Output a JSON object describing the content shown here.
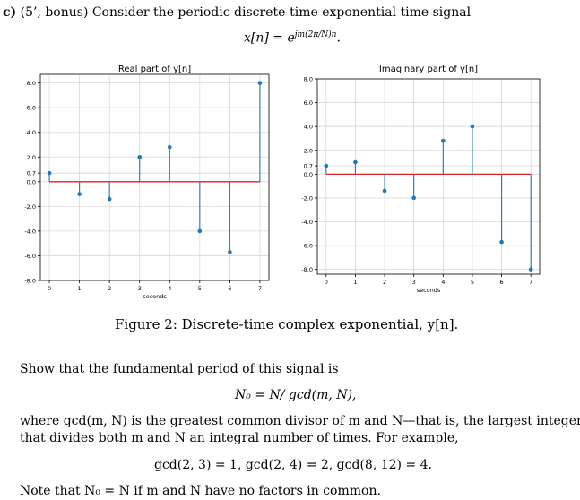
{
  "problem": {
    "label": "c)",
    "intro": "(5’, bonus) Consider the periodic discrete-time exponential time signal",
    "equation_lhs": "x[n] = e",
    "equation_exp": "jm(2π/N)n",
    "equation_tail": "."
  },
  "chart_data": [
    {
      "type": "stem",
      "title": "Real part of y[n]",
      "xlabel": "seconds",
      "ylabel": "",
      "x": [
        0,
        1,
        2,
        3,
        4,
        5,
        6,
        7
      ],
      "values": [
        0.7,
        -1.0,
        -1.4,
        2.0,
        2.8,
        -4.0,
        -5.7,
        8.0
      ],
      "xlim": [
        -0.3,
        7.3
      ],
      "ylim": [
        -8.0,
        8.7
      ],
      "yticks": [
        "8.0",
        "6.0",
        "4.0",
        "2.0",
        "0.7",
        "0.0",
        "-2.0",
        "-4.0",
        "-6.0",
        "-8.0"
      ],
      "xticks": [
        "0",
        "1",
        "2",
        "3",
        "4",
        "5",
        "6",
        "7"
      ],
      "grid": true,
      "stem_color": "#1f77b4",
      "baseline_color": "#d62728"
    },
    {
      "type": "stem",
      "title": "Imaginary part of y[n]",
      "xlabel": "seconds",
      "ylabel": "",
      "x": [
        0,
        1,
        2,
        3,
        4,
        5,
        6,
        7
      ],
      "values": [
        0.7,
        1.0,
        -1.4,
        -2.0,
        2.8,
        4.0,
        -5.7,
        -8.0
      ],
      "xlim": [
        -0.3,
        7.3
      ],
      "ylim": [
        -8.4,
        8.0
      ],
      "yticks": [
        "8.0",
        "6.0",
        "4.0",
        "2.0",
        "0.7",
        "0.0",
        "-2.0",
        "-4.0",
        "-6.0",
        "-8.0"
      ],
      "xticks": [
        "0",
        "1",
        "2",
        "3",
        "4",
        "5",
        "6",
        "7"
      ],
      "grid": true,
      "stem_color": "#1f77b4",
      "baseline_color": "#d62728"
    }
  ],
  "caption": "Figure 2: Discrete-time complex exponential, y[n].",
  "text": {
    "show_that": "Show that the fundamental period of this signal is",
    "period_eq": "N₀ = N/ gcd(m, N),",
    "where_line1": "where gcd(m, N) is the greatest common divisor of m and N—that is, the largest integer",
    "where_line2": "that divides both m and N an integral number of times. For example,",
    "examples": "gcd(2, 3) = 1,   gcd(2, 4) = 2,   gcd(8, 12) = 4.",
    "note": "Note that N₀ = N if m and N have no factors in common."
  }
}
